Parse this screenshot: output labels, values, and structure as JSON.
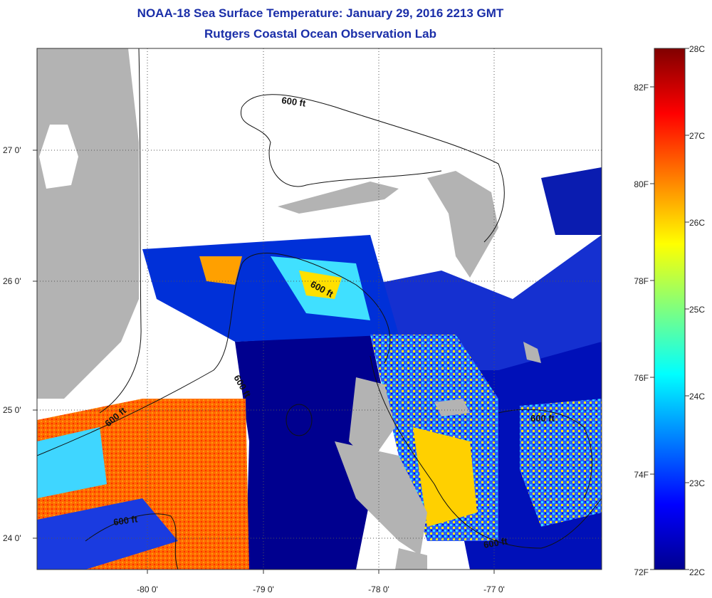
{
  "title": "NOAA-18 Sea Surface Temperature:  January 29, 2016 2213 GMT",
  "subtitle": "Rutgers Coastal Ocean Observation Lab",
  "map": {
    "lon_labels": [
      "-80 0'",
      "-79 0'",
      "-78 0'",
      "-77 0'"
    ],
    "lat_labels": [
      "27 0'",
      "26 0'",
      "25 0'",
      "24 0'"
    ],
    "contour_labels": [
      "600 ft",
      "600 ft",
      "600 ft",
      "600 ft",
      "600 ft",
      "600 ft"
    ],
    "colors": {
      "land": "#b3b3b3",
      "cloud": "#ffffff",
      "cold": "#00008f",
      "warm": "#ff5a00"
    }
  },
  "colorbar": {
    "celsius_labels": [
      "28C",
      "27C",
      "26C",
      "25C",
      "24C",
      "23C",
      "22C"
    ],
    "fahrenheit_labels": [
      "82F",
      "80F",
      "78F",
      "76F",
      "74F",
      "72F"
    ],
    "range_c": [
      22,
      28
    ]
  }
}
